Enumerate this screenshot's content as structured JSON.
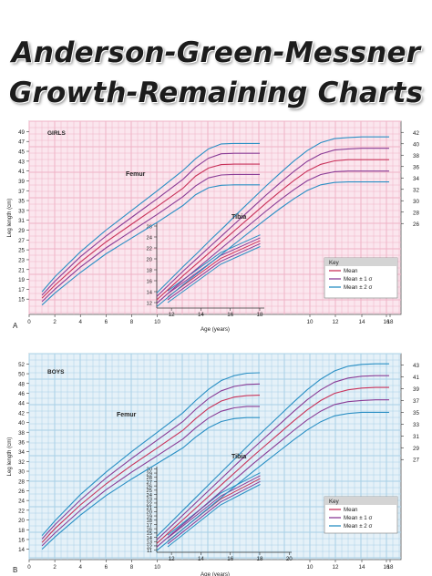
{
  "title": {
    "line1": "Anderson-Green-Messner",
    "line2": "Growth-Remaining Charts"
  },
  "colors": {
    "mean": "#c8325a",
    "sd1": "#8a3c96",
    "sd2": "#2a8fc4",
    "girls_bg": "#fbe6ee",
    "girls_grid": "#efb2c6",
    "boys_bg": "#e5f1f8",
    "boys_grid": "#a8d0e6"
  },
  "chart_data": [
    {
      "type": "line",
      "panel_label": "A",
      "group_label": "GIRLS",
      "xlabel": "Age (years)",
      "ylabel": "Leg length (cm)",
      "legend": {
        "title": "Key",
        "entries": [
          "Mean",
          "Mean ± 1 σ",
          "Mean ± 2 σ"
        ],
        "position": "bottom-right"
      },
      "femur": {
        "label": "Femur",
        "x": [
          1,
          2,
          4,
          6,
          8,
          10,
          12,
          13,
          14,
          15,
          16,
          17,
          18
        ],
        "ylim": [
          13,
          50
        ],
        "y_ticks": [
          15,
          17,
          19,
          21,
          23,
          25,
          27,
          29,
          31,
          33,
          35,
          37,
          39,
          41,
          43,
          45,
          47,
          49
        ],
        "x_ticks": [
          0,
          2,
          4,
          6,
          8,
          10
        ],
        "series": [
          {
            "role": "sd2",
            "values": [
              16.5,
              19.5,
              24.6,
              29.0,
              33.0,
              37.0,
              41.1,
              43.5,
              45.5,
              46.5,
              46.6,
              46.6,
              46.6
            ]
          },
          {
            "role": "sd1",
            "values": [
              15.8,
              18.6,
              23.6,
              27.8,
              31.6,
              35.4,
              39.3,
              41.8,
              43.6,
              44.5,
              44.6,
              44.6,
              44.6
            ]
          },
          {
            "role": "mean",
            "values": [
              15.2,
              17.8,
              22.5,
              26.6,
              30.2,
              33.8,
              37.5,
              40.0,
              41.6,
              42.3,
              42.4,
              42.4,
              42.4
            ]
          },
          {
            "role": "sd1",
            "values": [
              14.5,
              17.0,
              21.5,
              25.4,
              28.8,
              32.2,
              35.8,
              38.0,
              39.6,
              40.2,
              40.3,
              40.3,
              40.3
            ]
          },
          {
            "role": "sd2",
            "values": [
              13.8,
              16.2,
              20.4,
              24.2,
              27.4,
              30.6,
              34.0,
              36.2,
              37.6,
              38.1,
              38.2,
              38.2,
              38.2
            ]
          }
        ]
      },
      "femur_inset_axis": {
        "x_ticks": [
          12,
          14,
          16,
          18
        ],
        "y_ticks": [
          12,
          14,
          16,
          18,
          20,
          22,
          24,
          26
        ],
        "ylim": [
          11,
          26.5
        ]
      },
      "tibia": {
        "label": "Tibia",
        "x": [
          11,
          12,
          13,
          14,
          15,
          16,
          17,
          18,
          19,
          20,
          21,
          22,
          23,
          24,
          25,
          26,
          27,
          28
        ],
        "x_ticks": [
          10,
          12,
          14,
          16,
          18,
          20
        ],
        "y_ticks": [
          26,
          28,
          30,
          32,
          34,
          36,
          38,
          40,
          42
        ],
        "ylim": [
          11,
          43
        ],
        "series": [
          {
            "role": "sd2",
            "values": [
              13.8,
              16.2,
              18.6,
              20.9,
              23.3,
              25.6,
              28.0,
              30.3,
              32.6,
              34.8,
              36.9,
              38.8,
              40.2,
              40.9,
              41.1,
              41.2,
              41.2,
              41.2
            ]
          },
          {
            "role": "sd1",
            "values": [
              13.2,
              15.5,
              17.8,
              20.0,
              22.2,
              24.4,
              26.6,
              28.8,
              31.0,
              33.1,
              35.1,
              36.9,
              38.2,
              38.9,
              39.1,
              39.2,
              39.2,
              39.2
            ]
          },
          {
            "role": "mean",
            "values": [
              12.6,
              14.8,
              17.0,
              19.1,
              21.2,
              23.3,
              25.4,
              27.5,
              29.6,
              31.6,
              33.5,
              35.2,
              36.4,
              37.0,
              37.2,
              37.2,
              37.2,
              37.2
            ]
          },
          {
            "role": "sd1",
            "values": [
              12.0,
              14.1,
              16.2,
              18.2,
              20.2,
              22.2,
              24.2,
              26.2,
              28.2,
              30.1,
              31.9,
              33.5,
              34.6,
              35.1,
              35.2,
              35.2,
              35.2,
              35.2
            ]
          },
          {
            "role": "sd2",
            "values": [
              11.4,
              13.4,
              15.4,
              17.3,
              19.2,
              21.1,
              23.0,
              24.9,
              26.8,
              28.6,
              30.3,
              31.8,
              32.8,
              33.2,
              33.3,
              33.3,
              33.3,
              33.3
            ]
          }
        ],
        "top_x_ticks": [
          10,
          12,
          14,
          16,
          18
        ]
      }
    },
    {
      "type": "line",
      "panel_label": "B",
      "group_label": "BOYS",
      "xlabel": "Age (years)",
      "ylabel": "Leg length (cm)",
      "legend": {
        "title": "Key",
        "entries": [
          "Mean",
          "Mean ± 1 σ",
          "Mean ± 2 σ"
        ],
        "position": "bottom-right"
      },
      "femur": {
        "label": "Femur",
        "x": [
          1,
          2,
          4,
          6,
          8,
          10,
          12,
          13,
          14,
          15,
          16,
          17,
          18
        ],
        "ylim": [
          13,
          53
        ],
        "y_ticks": [
          14,
          16,
          18,
          20,
          22,
          24,
          26,
          28,
          30,
          32,
          34,
          36,
          38,
          40,
          42,
          44,
          46,
          48,
          50,
          52
        ],
        "x_ticks": [
          0,
          2,
          4,
          6,
          8,
          10
        ],
        "series": [
          {
            "role": "sd2",
            "values": [
              16.8,
              19.8,
              25.2,
              29.8,
              34.0,
              38.0,
              42.0,
              44.5,
              46.8,
              48.6,
              49.6,
              50.1,
              50.2
            ]
          },
          {
            "role": "sd1",
            "values": [
              16.1,
              19.0,
              24.1,
              28.6,
              32.6,
              36.4,
              40.2,
              42.7,
              44.9,
              46.5,
              47.4,
              47.8,
              47.9
            ]
          },
          {
            "role": "mean",
            "values": [
              15.4,
              18.2,
              23.1,
              27.4,
              31.2,
              34.8,
              38.4,
              40.8,
              42.9,
              44.4,
              45.2,
              45.5,
              45.6
            ]
          },
          {
            "role": "sd1",
            "values": [
              14.7,
              17.3,
              22.0,
              26.2,
              29.8,
              33.2,
              36.6,
              38.9,
              40.9,
              42.3,
              43.0,
              43.3,
              43.3
            ]
          },
          {
            "role": "sd2",
            "values": [
              14.0,
              16.5,
              21.0,
              25.0,
              28.4,
              31.6,
              34.8,
              37.0,
              38.9,
              40.2,
              40.8,
              41.0,
              41.0
            ]
          }
        ]
      },
      "femur_inset_axis": {
        "x_ticks": [
          12,
          14,
          16,
          18,
          20
        ],
        "y_ticks": [
          11,
          12,
          13,
          14,
          15,
          16,
          17,
          18,
          19,
          20,
          21,
          22,
          23,
          24,
          25,
          26,
          27,
          28,
          29,
          30
        ],
        "ylim": [
          10.5,
          30.5
        ]
      },
      "tibia": {
        "label": "Tibia",
        "x": [
          11,
          12,
          13,
          14,
          15,
          16,
          17,
          18,
          19,
          20,
          21,
          22,
          23,
          24,
          25,
          26,
          27,
          28
        ],
        "x_ticks": [
          10,
          12,
          14,
          16,
          18,
          20
        ],
        "y_ticks": [
          27,
          29,
          31,
          33,
          35,
          37,
          39,
          41,
          43
        ],
        "ylim": [
          11,
          44
        ],
        "series": [
          {
            "role": "sd2",
            "values": [
              14.0,
              16.3,
              18.6,
              20.9,
              23.2,
              25.5,
              27.8,
              30.1,
              32.3,
              34.5,
              36.7,
              38.8,
              40.6,
              42.0,
              42.8,
              43.1,
              43.2,
              43.2
            ]
          },
          {
            "role": "sd1",
            "values": [
              13.4,
              15.6,
              17.8,
              20.0,
              22.2,
              24.4,
              26.6,
              28.8,
              30.9,
              33.0,
              35.1,
              37.1,
              38.8,
              40.1,
              40.8,
              41.1,
              41.2,
              41.2
            ]
          },
          {
            "role": "mean",
            "values": [
              12.8,
              14.9,
              17.0,
              19.1,
              21.2,
              23.3,
              25.4,
              27.5,
              29.5,
              31.5,
              33.5,
              35.4,
              37.0,
              38.2,
              38.8,
              39.1,
              39.2,
              39.2
            ]
          },
          {
            "role": "sd1",
            "values": [
              12.2,
              14.2,
              16.2,
              18.2,
              20.2,
              22.2,
              24.2,
              26.2,
              28.1,
              30.0,
              31.9,
              33.7,
              35.2,
              36.3,
              36.8,
              37.0,
              37.1,
              37.1
            ]
          },
          {
            "role": "sd2",
            "values": [
              11.6,
              13.5,
              15.4,
              17.3,
              19.2,
              21.1,
              23.0,
              24.9,
              26.7,
              28.5,
              30.3,
              32.0,
              33.4,
              34.4,
              34.8,
              35.0,
              35.0,
              35.0
            ]
          }
        ],
        "top_x_ticks": [
          10,
          12,
          14,
          16,
          18
        ]
      }
    }
  ]
}
